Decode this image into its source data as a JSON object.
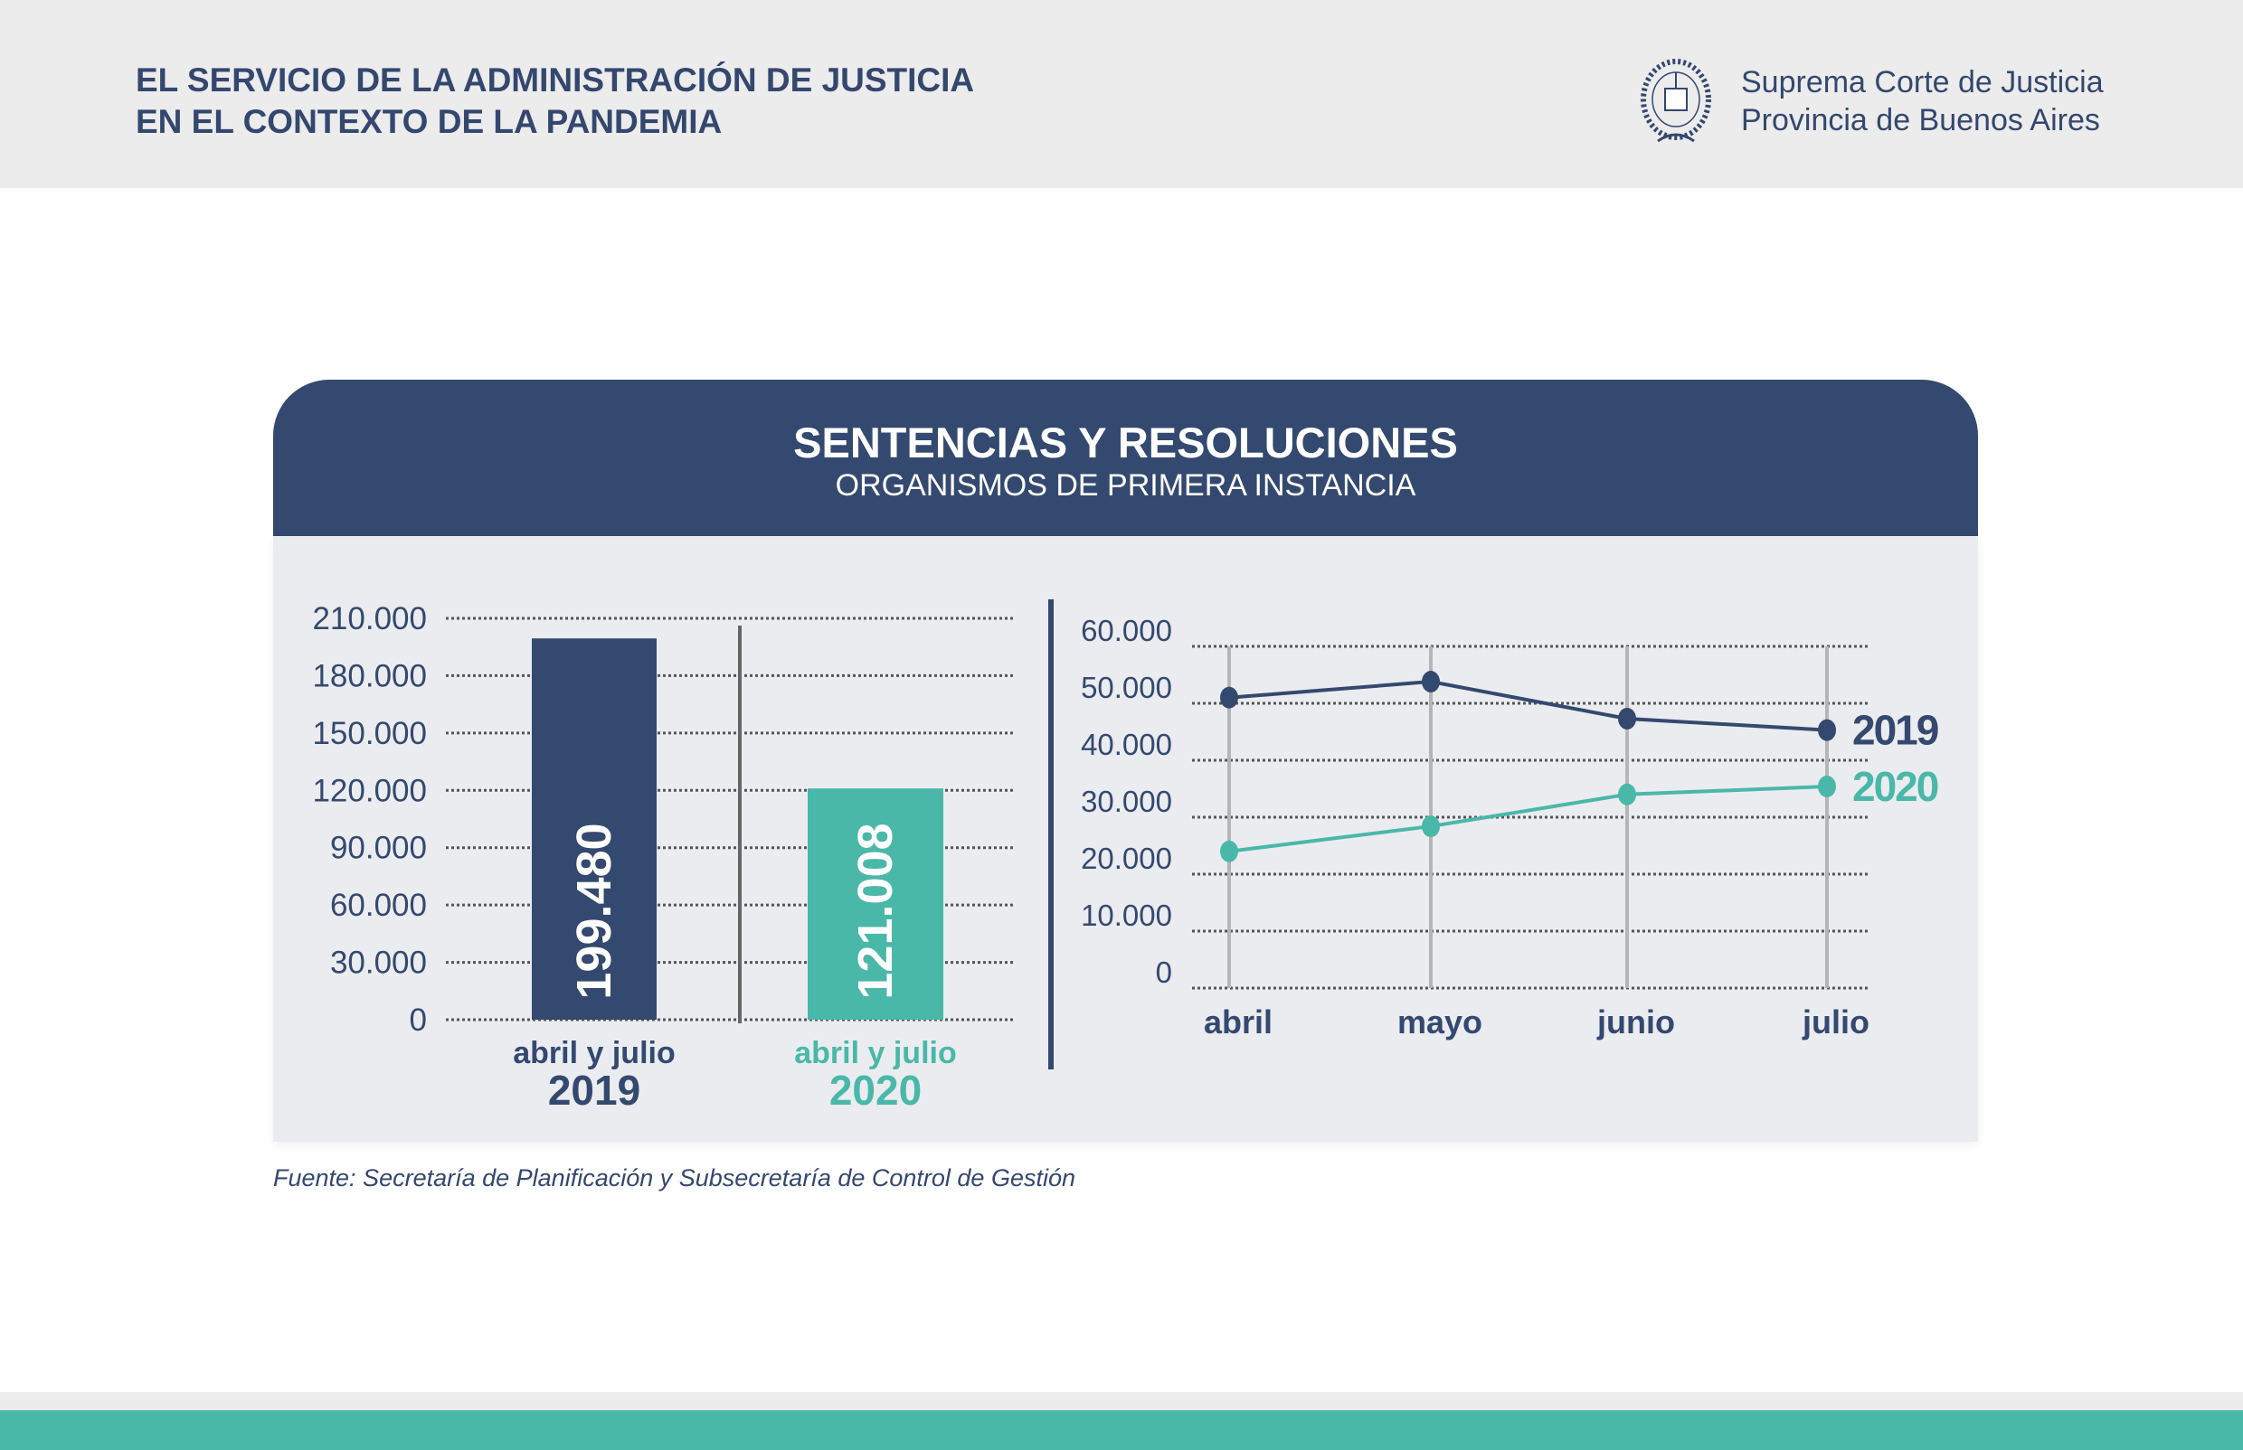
{
  "header": {
    "title_line1": "EL SERVICIO DE LA ADMINISTRACIÓN DE JUSTICIA",
    "title_line2": "EN EL CONTEXTO DE LA PANDEMIA",
    "org_line1": "Suprema Corte de Justicia",
    "org_line2": "Provincia de Buenos Aires",
    "logo_text": "IN LEGIBUS SALUS"
  },
  "card": {
    "title": "SENTENCIAS Y RESOLUCIONES",
    "subtitle": "ORGANISMOS DE PRIMERA INSTANCIA"
  },
  "source": "Fuente: Secretaría de Planificación y Subsecretaría de Control de Gestión",
  "colors": {
    "navy": "#34496f",
    "teal": "#4ab8a8"
  },
  "chart_data": [
    {
      "type": "bar",
      "categories": [
        {
          "label": "abril y julio",
          "year": "2019"
        },
        {
          "label": "abril y julio",
          "year": "2020"
        }
      ],
      "values": [
        199480,
        121008
      ],
      "value_labels": [
        "199.480",
        "121.008"
      ],
      "ylim": [
        0,
        210000
      ],
      "yticks": [
        "0",
        "30.000",
        "60.000",
        "90.000",
        "120.000",
        "150.000",
        "180.000",
        "210.000"
      ],
      "grid": true,
      "colors": [
        "#34496f",
        "#4ab8a8"
      ]
    },
    {
      "type": "line",
      "categories": [
        "abril",
        "mayo",
        "junio",
        "julio"
      ],
      "ylim": [
        0,
        60000
      ],
      "yticks": [
        "0",
        "10.000",
        "20.000",
        "30.000",
        "40.000",
        "50.000",
        "60.000"
      ],
      "grid": true,
      "legend": "right",
      "series": [
        {
          "name": "2019",
          "values": [
            51000,
            53800,
            47300,
            45300
          ],
          "color": "#34496f"
        },
        {
          "name": "2020",
          "values": [
            24000,
            28400,
            34000,
            35400
          ],
          "color": "#4ab8a8"
        }
      ]
    }
  ]
}
